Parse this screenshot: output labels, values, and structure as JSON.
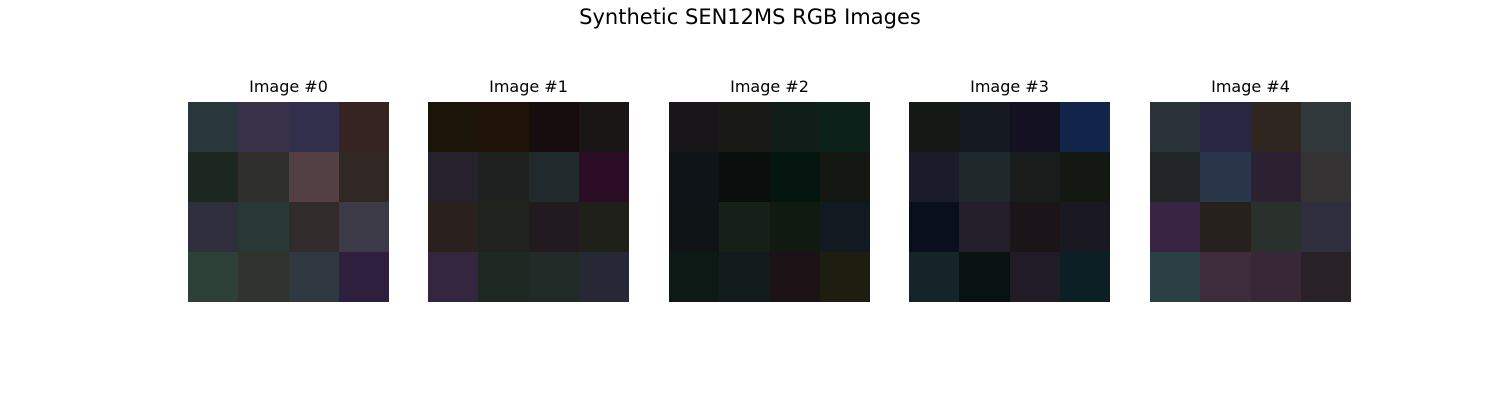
{
  "figure": {
    "title": "Synthetic SEN12MS RGB Images"
  },
  "images": [
    {
      "title": "Image #0",
      "pixels": [
        [
          "#29373d",
          "#373149",
          "#33304d",
          "#362423"
        ],
        [
          "#1b2720",
          "#2f2f2e",
          "#524042",
          "#302825"
        ],
        [
          "#2e2e3c",
          "#283834",
          "#312c2b",
          "#3b3a46"
        ],
        [
          "#2d4038",
          "#2f352e",
          "#2f3840",
          "#2e1f3f"
        ]
      ]
    },
    {
      "title": "Image #1",
      "pixels": [
        [
          "#1b1509",
          "#1f1309",
          "#180d0e",
          "#1a1615"
        ],
        [
          "#25222b",
          "#1d211f",
          "#202a2c",
          "#2a0c24"
        ],
        [
          "#2a211e",
          "#20221e",
          "#211b1f",
          "#20201a"
        ],
        [
          "#352640",
          "#1f2922",
          "#212a26",
          "#272835"
        ]
      ]
    },
    {
      "title": "Image #2",
      "pixels": [
        [
          "#181618",
          "#191a15",
          "#111d18",
          "#0c2119"
        ],
        [
          "#0d1317",
          "#0a0f0d",
          "#051611",
          "#141611"
        ],
        [
          "#0f1517",
          "#162019",
          "#101a10",
          "#111a20"
        ],
        [
          "#0c1915",
          "#121a1c",
          "#1b1215",
          "#1d1e10"
        ]
      ]
    },
    {
      "title": "Image #3",
      "pixels": [
        [
          "#141916",
          "#14181f",
          "#141221",
          "#13244b"
        ],
        [
          "#1b1c2a",
          "#1f282a",
          "#181d1b",
          "#131813"
        ],
        [
          "#0a0f1e",
          "#231e29",
          "#1b1418",
          "#1a1820"
        ],
        [
          "#152428",
          "#071211",
          "#201b24",
          "#0c1f25"
        ]
      ]
    },
    {
      "title": "Image #4",
      "pixels": [
        [
          "#283238",
          "#282640",
          "#2f2620",
          "#31383b"
        ],
        [
          "#232627",
          "#293549",
          "#2c2130",
          "#353233"
        ],
        [
          "#392543",
          "#26211c",
          "#2a302c",
          "#2e2e3d"
        ],
        [
          "#2b4045",
          "#3d2d3b",
          "#382837",
          "#282226"
        ]
      ]
    }
  ]
}
